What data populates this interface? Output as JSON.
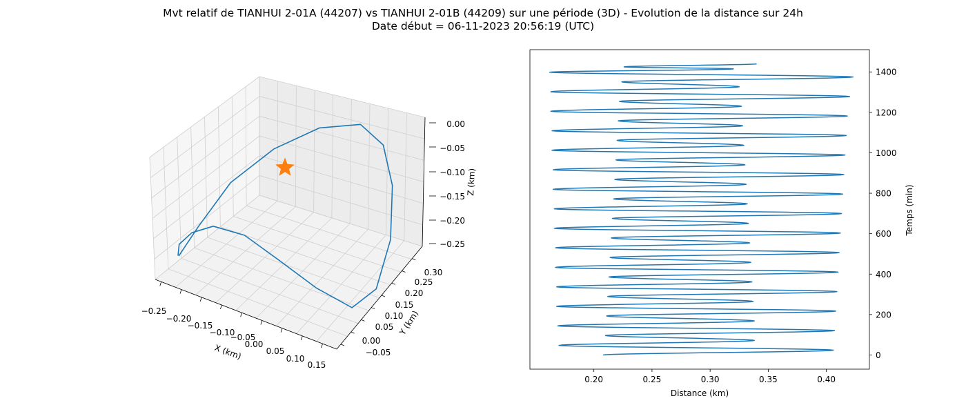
{
  "title": "Mvt relatif de TIANHUI 2-01A (44207) vs TIANHUI 2-01B (44209) sur une période (3D) - Evolution de la distance sur 24h",
  "subtitle": "Date début = 06-11-2023 20:56:19 (UTC)",
  "chart_data": [
    {
      "type": "line3d",
      "xlabel": "X (km)",
      "ylabel": "Y (km)",
      "zlabel": "Z (km)",
      "xlim": [
        -0.27,
        0.17
      ],
      "ylim": [
        -0.08,
        0.34
      ],
      "zlim": [
        -0.27,
        0.0
      ],
      "x_ticks": [
        "−0.25",
        "−0.20",
        "−0.15",
        "−0.10",
        "−0.05",
        "0.00",
        "0.05",
        "0.10",
        "0.15"
      ],
      "y_ticks": [
        "−0.05",
        "0.00",
        "0.05",
        "0.10",
        "0.15",
        "0.20",
        "0.25",
        "0.30"
      ],
      "z_ticks": [
        "0.00",
        "−0.05",
        "−0.10",
        "−0.15",
        "−0.20",
        "−0.25"
      ],
      "grid": true,
      "series_color": "#1f77b4",
      "marker": {
        "symbol": "star",
        "color": "#ff7f0e",
        "x": 0.0,
        "y": 0.0,
        "z": 0.0
      },
      "x": [
        -0.26,
        -0.24,
        -0.2,
        -0.14,
        -0.07,
        0.0,
        0.06,
        0.11,
        0.15,
        0.16,
        0.13,
        0.07,
        0.0,
        -0.07,
        -0.14,
        -0.2,
        -0.245,
        -0.262
      ],
      "y": [
        0.0,
        0.05,
        0.12,
        0.2,
        0.27,
        0.32,
        0.31,
        0.26,
        0.18,
        0.1,
        0.05,
        0.01,
        -0.02,
        -0.04,
        -0.05,
        -0.04,
        -0.02,
        0.0
      ],
      "z": [
        -0.25,
        -0.2,
        -0.12,
        -0.06,
        -0.02,
        -0.01,
        -0.03,
        -0.08,
        -0.15,
        -0.22,
        -0.25,
        -0.21,
        -0.16,
        -0.12,
        -0.12,
        -0.16,
        -0.21,
        -0.25
      ]
    },
    {
      "type": "line",
      "xlabel": "Distance (km)",
      "ylabel": "Temps (min)",
      "xlim": [
        0.145,
        0.437
      ],
      "ylim": [
        -70,
        1510
      ],
      "x_ticks": [
        0.2,
        0.25,
        0.3,
        0.35,
        0.4
      ],
      "y_ticks": [
        0,
        200,
        400,
        600,
        800,
        1000,
        1200,
        1400
      ],
      "color": "#1f77b4",
      "period_min": 96.5,
      "t_max": 1440,
      "dist_start": 0.208,
      "dist_end": 0.34,
      "turning_points": [
        {
          "t": 0,
          "d": 0.208
        },
        {
          "t": 24.0,
          "d": 0.406
        },
        {
          "t": 47.5,
          "d": 0.17
        },
        {
          "t": 72.0,
          "d": 0.338
        },
        {
          "t": 96.5,
          "d": 0.21
        },
        {
          "t": 120.5,
          "d": 0.407
        },
        {
          "t": 144.0,
          "d": 0.169
        },
        {
          "t": 168.5,
          "d": 0.338
        },
        {
          "t": 193.0,
          "d": 0.211
        },
        {
          "t": 217.0,
          "d": 0.408
        },
        {
          "t": 240.5,
          "d": 0.168
        },
        {
          "t": 265.0,
          "d": 0.337
        },
        {
          "t": 289.5,
          "d": 0.212
        },
        {
          "t": 313.5,
          "d": 0.409
        },
        {
          "t": 337.0,
          "d": 0.168
        },
        {
          "t": 361.5,
          "d": 0.336
        },
        {
          "t": 386.0,
          "d": 0.213
        },
        {
          "t": 410.0,
          "d": 0.41
        },
        {
          "t": 433.5,
          "d": 0.167
        },
        {
          "t": 458.0,
          "d": 0.335
        },
        {
          "t": 482.5,
          "d": 0.214
        },
        {
          "t": 506.5,
          "d": 0.411
        },
        {
          "t": 530.0,
          "d": 0.167
        },
        {
          "t": 554.5,
          "d": 0.334
        },
        {
          "t": 579.0,
          "d": 0.215
        },
        {
          "t": 603.0,
          "d": 0.412
        },
        {
          "t": 626.5,
          "d": 0.166
        },
        {
          "t": 651.0,
          "d": 0.333
        },
        {
          "t": 675.5,
          "d": 0.216
        },
        {
          "t": 699.5,
          "d": 0.413
        },
        {
          "t": 723.0,
          "d": 0.166
        },
        {
          "t": 747.5,
          "d": 0.332
        },
        {
          "t": 772.0,
          "d": 0.217
        },
        {
          "t": 796.0,
          "d": 0.414
        },
        {
          "t": 819.5,
          "d": 0.165
        },
        {
          "t": 844.0,
          "d": 0.331
        },
        {
          "t": 868.5,
          "d": 0.218
        },
        {
          "t": 892.5,
          "d": 0.415
        },
        {
          "t": 916.0,
          "d": 0.165
        },
        {
          "t": 940.5,
          "d": 0.33
        },
        {
          "t": 965.0,
          "d": 0.219
        },
        {
          "t": 989.0,
          "d": 0.416
        },
        {
          "t": 1012.5,
          "d": 0.164
        },
        {
          "t": 1037.0,
          "d": 0.329
        },
        {
          "t": 1061.5,
          "d": 0.22
        },
        {
          "t": 1085.5,
          "d": 0.417
        },
        {
          "t": 1109.0,
          "d": 0.164
        },
        {
          "t": 1133.5,
          "d": 0.328
        },
        {
          "t": 1158.0,
          "d": 0.221
        },
        {
          "t": 1182.0,
          "d": 0.418
        },
        {
          "t": 1205.5,
          "d": 0.163
        },
        {
          "t": 1230.0,
          "d": 0.327
        },
        {
          "t": 1254.5,
          "d": 0.222
        },
        {
          "t": 1278.5,
          "d": 0.42
        },
        {
          "t": 1302.0,
          "d": 0.163
        },
        {
          "t": 1326.5,
          "d": 0.325
        },
        {
          "t": 1351.0,
          "d": 0.224
        },
        {
          "t": 1375.0,
          "d": 0.423
        },
        {
          "t": 1398.5,
          "d": 0.162
        },
        {
          "t": 1415.0,
          "d": 0.32
        },
        {
          "t": 1425.0,
          "d": 0.226
        },
        {
          "t": 1440.0,
          "d": 0.34
        }
      ]
    }
  ]
}
